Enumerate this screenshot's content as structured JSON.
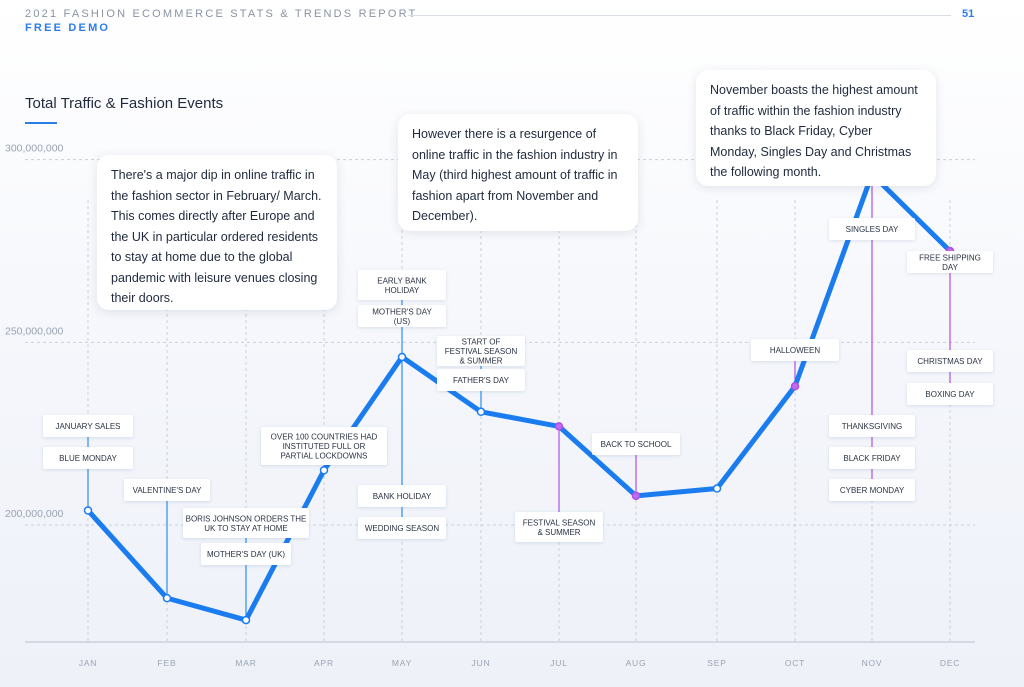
{
  "header": {
    "report_title": "2021 FASHION ECOMMERCE STATS & TRENDS REPORT",
    "edition": "FREE DEMO",
    "page_number": "51"
  },
  "callouts": {
    "dip": "There's a major dip in online traffic in the fashion sector in February/ March. This comes directly after Europe and the UK in particular ordered residents to stay at home due to the global pandemic with leisure venues closing their doors.",
    "may": "However there is a resurgence of online traffic in the fashion industry in May (third highest amount of traffic in fashion apart from November and December).",
    "november": "November boasts the highest amount of traffic within the fashion industry thanks to Black Friday, Cyber Monday, Singles Day and Christmas the following month."
  },
  "colors": {
    "line": "#1b7cf0",
    "event_line_blue": "#2b8ef0",
    "event_line_purple": "#b04fe6",
    "grid": "#c9d0dc",
    "axis": "#b7bfcc"
  },
  "chart_data": {
    "type": "line",
    "title": "Total Traffic & Fashion Events",
    "xlabel": "",
    "ylabel": "",
    "categories": [
      "JAN",
      "FEB",
      "MAR",
      "APR",
      "MAY",
      "JUN",
      "JUL",
      "AUG",
      "SEP",
      "OCT",
      "NOV",
      "DEC"
    ],
    "values": [
      204000000,
      180000000,
      174000000,
      215000000,
      246000000,
      231000000,
      227000000,
      208000000,
      210000000,
      238000000,
      296000000,
      275000000
    ],
    "yticks": [
      {
        "value": 200000000,
        "label": "200,000,000"
      },
      {
        "value": 250000000,
        "label": "250,000,000"
      },
      {
        "value": 300000000,
        "label": "300,000,000"
      }
    ],
    "ylim": [
      168000000,
      330000000
    ],
    "grid": true,
    "events": [
      {
        "month": "JAN",
        "labels": [
          "JANUARY SALES",
          "BLUE MONDAY"
        ],
        "color": "blue"
      },
      {
        "month": "FEB",
        "labels": [
          "VALENTINE'S DAY"
        ],
        "color": "blue"
      },
      {
        "month": "MAR",
        "labels": [
          "BORIS JOHNSON ORDERS THE UK TO STAY AT HOME",
          "MOTHER'S DAY (UK)"
        ],
        "color": "blue"
      },
      {
        "month": "APR",
        "labels": [
          "OVER 100 COUNTRIES HAD INSTITUTED FULL OR PARTIAL LOCKDOWNS"
        ],
        "color": "blue"
      },
      {
        "month": "MAY",
        "labels": [
          "EARLY BANK HOLIDAY",
          "MOTHER'S DAY (US)",
          "BANK HOLIDAY",
          "WEDDING SEASON"
        ],
        "color": "blue"
      },
      {
        "month": "JUN",
        "labels": [
          "START OF FESTIVAL SEASON & SUMMER",
          "FATHER'S DAY"
        ],
        "color": "blue"
      },
      {
        "month": "JUL",
        "labels": [
          "FESTIVAL SEASON & SUMMER"
        ],
        "color": "purple"
      },
      {
        "month": "AUG",
        "labels": [
          "BACK TO SCHOOL"
        ],
        "color": "purple"
      },
      {
        "month": "OCT",
        "labels": [
          "HALLOWEEN"
        ],
        "color": "purple"
      },
      {
        "month": "NOV",
        "labels": [
          "SINGLES DAY",
          "THANKSGIVING",
          "BLACK FRIDAY",
          "CYBER MONDAY"
        ],
        "color": "purple"
      },
      {
        "month": "DEC",
        "labels": [
          "FREE SHIPPING DAY",
          "CHRISTMAS DAY",
          "BOXING DAY"
        ],
        "color": "purple"
      }
    ]
  }
}
